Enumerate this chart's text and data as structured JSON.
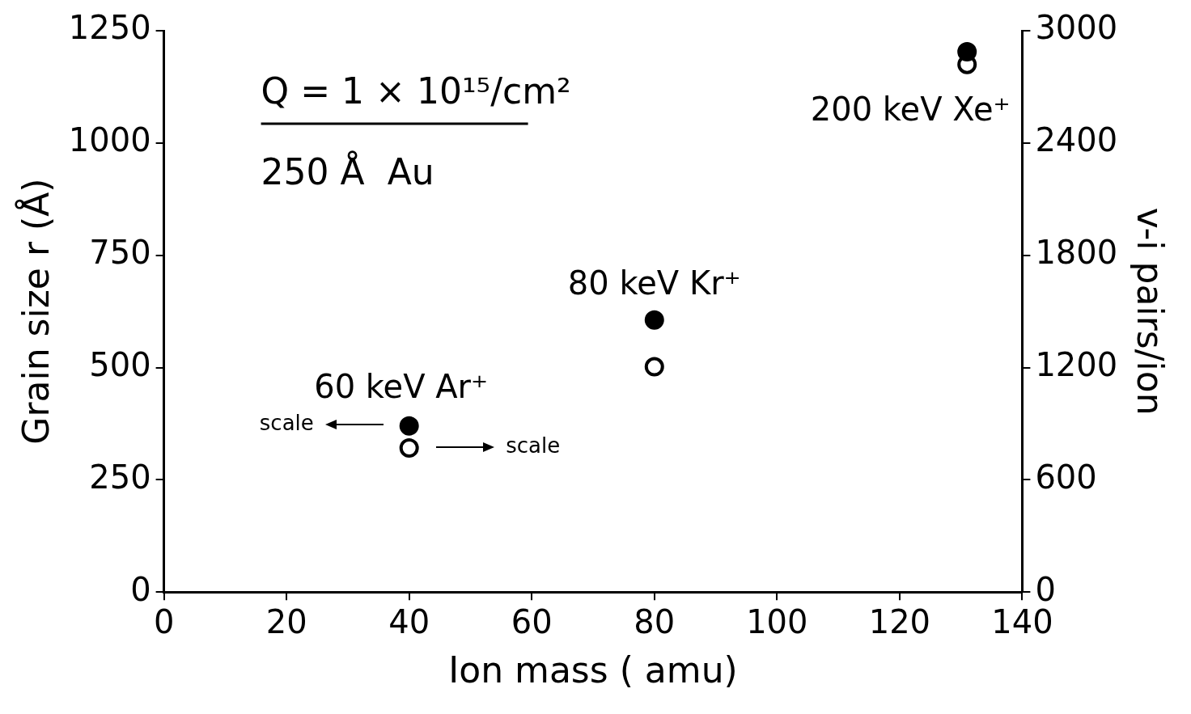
{
  "chart_data": {
    "type": "scatter",
    "xlabel": "Ion mass ( amu)",
    "ylabel": "Grain size r (Å)",
    "y2label": "v-i pairs/ion",
    "xlim": [
      0,
      140
    ],
    "xticks": [
      0,
      20,
      40,
      60,
      80,
      100,
      120,
      140
    ],
    "ylim": [
      0,
      1250
    ],
    "yticks": [
      0,
      250,
      500,
      750,
      1000,
      1250
    ],
    "y2lim": [
      0,
      3000
    ],
    "y2ticks": [
      0,
      600,
      1200,
      1800,
      2400,
      3000
    ],
    "marker": "circle",
    "grid": false,
    "legend": false,
    "series": [
      {
        "color": "#000000",
        "x": [
          40,
          80,
          131
        ],
        "values": [
          370,
          606,
          1203
        ]
      },
      {
        "color": "#000000",
        "axis": "y2",
        "x": [
          40,
          80,
          131
        ],
        "values": [
          770,
          1204,
          2820
        ]
      }
    ],
    "annotations": [
      "Q = 1 × 10¹⁵/cm²",
      "250 Å  Au",
      {
        "text": "60 keV Ar⁺",
        "x": 40,
        "y": 370
      },
      "scale",
      "scale",
      {
        "text": "80 keV Kr⁺",
        "x": 80,
        "y": 606
      },
      {
        "text": "200 keV Xe⁺",
        "x": 131,
        "y": 1203
      }
    ]
  }
}
